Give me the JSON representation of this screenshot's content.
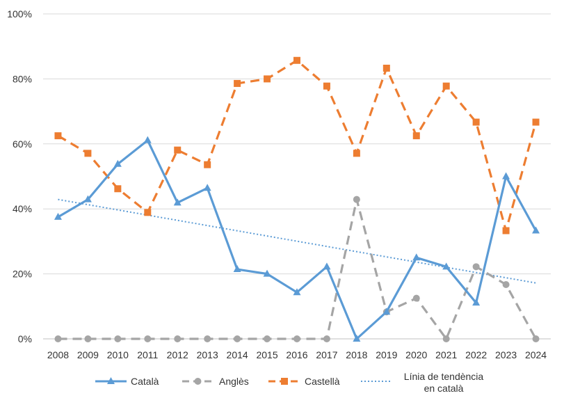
{
  "chart_data": {
    "type": "line",
    "title": "",
    "xlabel": "",
    "ylabel": "",
    "categories": [
      "2008",
      "2009",
      "2010",
      "2011",
      "2012",
      "2013",
      "2014",
      "2015",
      "2016",
      "2017",
      "2018",
      "2019",
      "2020",
      "2021",
      "2022",
      "2023",
      "2024"
    ],
    "ylim": [
      0,
      100
    ],
    "yticks": [
      "0%",
      "20%",
      "40%",
      "60%",
      "80%",
      "100%"
    ],
    "grid": "horizontal",
    "legend_position": "bottom",
    "series": [
      {
        "name": "Català",
        "color": "#5B9BD5",
        "style": "solid",
        "marker": "triangle",
        "values": [
          37.5,
          42.9,
          53.8,
          61.1,
          41.9,
          46.4,
          21.4,
          20.0,
          14.3,
          22.2,
          0.0,
          8.3,
          25.0,
          22.2,
          11.1,
          50.0,
          33.3
        ]
      },
      {
        "name": "Anglès",
        "color": "#A5A5A5",
        "style": "dash",
        "marker": "circle",
        "values": [
          0,
          0,
          0,
          0,
          0,
          0,
          0,
          0,
          0,
          0,
          42.9,
          8.3,
          12.5,
          0,
          22.2,
          16.7,
          0
        ]
      },
      {
        "name": "Castellà",
        "color": "#ED7D31",
        "style": "dash",
        "marker": "square",
        "values": [
          62.5,
          57.1,
          46.2,
          38.9,
          58.1,
          53.6,
          78.6,
          80.0,
          85.7,
          77.8,
          57.1,
          83.3,
          62.5,
          77.8,
          66.7,
          33.3,
          66.7
        ]
      }
    ],
    "trendline": {
      "name_line1": "Línia de tendència",
      "name_line2": "en català",
      "color": "#5B9BD5",
      "style": "dotted",
      "start_value": 42.9,
      "end_value": 17.2
    }
  }
}
